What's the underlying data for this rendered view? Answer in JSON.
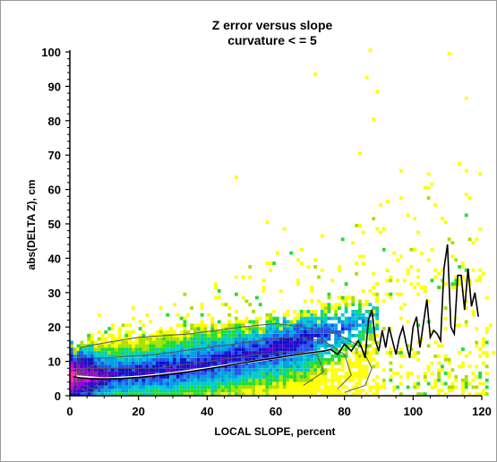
{
  "chart_data": {
    "type": "heatmap",
    "title": "Z error versus slope",
    "subtitle": "curvature < = 5",
    "xlabel": "LOCAL SLOPE, percent",
    "ylabel": "abs(DELTA Z), cm",
    "xlim": [
      0,
      120
    ],
    "ylim": [
      0,
      100
    ],
    "xticks": [
      0,
      20,
      40,
      60,
      80,
      100,
      120
    ],
    "yticks": [
      0,
      10,
      20,
      30,
      40,
      50,
      60,
      70,
      80,
      90,
      100
    ],
    "grid": false,
    "legend": "none",
    "density_colors": [
      "#ffff00",
      "#a8e000",
      "#22dd33",
      "#00cccc",
      "#00a0e0",
      "#2255ee",
      "#1111cc",
      "#5500cc",
      "#9900dd",
      "#dd00cc",
      "#ff22aa"
    ],
    "contour_color": "#555555",
    "median_line": {
      "color": "#000000",
      "x": [
        1,
        3,
        6,
        10,
        15,
        20,
        25,
        30,
        35,
        40,
        45,
        50,
        55,
        60,
        65,
        70,
        74,
        76,
        78,
        80,
        82,
        84,
        85,
        86,
        87,
        88,
        89,
        90,
        91,
        92,
        93,
        94,
        95,
        96,
        97,
        98,
        99,
        100,
        101,
        102,
        103,
        104,
        105,
        106,
        107,
        108,
        109,
        110,
        111,
        112,
        113,
        114,
        115,
        116,
        117,
        118,
        119
      ],
      "y": [
        5.5,
        5.2,
        5.0,
        4.9,
        5.0,
        5.3,
        5.8,
        6.4,
        7.0,
        7.8,
        8.6,
        9.5,
        10.3,
        11.0,
        11.8,
        12.5,
        13.0,
        13.5,
        12.0,
        15.0,
        13.0,
        16.0,
        14.0,
        11.0,
        22.0,
        25.0,
        16.0,
        13.0,
        19.0,
        14.0,
        20.0,
        16.0,
        12.0,
        17.0,
        20.0,
        15.0,
        11.0,
        20.0,
        23.0,
        14.0,
        21.0,
        28.0,
        17.0,
        19.0,
        18.0,
        16.0,
        37.0,
        44.0,
        20.0,
        18.0,
        35.0,
        35.0,
        25.0,
        37.0,
        26.0,
        30.0,
        23.0
      ]
    },
    "smooth_line": {
      "color": "#ffffff",
      "x": [
        2,
        10,
        20,
        30,
        40,
        50,
        60,
        70,
        75
      ],
      "y": [
        5.6,
        5.0,
        5.5,
        6.6,
        8.0,
        9.5,
        11.0,
        12.5,
        13.2
      ]
    },
    "scatter_outliers": [
      {
        "x": 87,
        "y": 100
      },
      {
        "x": 110,
        "y": 99
      },
      {
        "x": 71,
        "y": 93
      },
      {
        "x": 86,
        "y": 92
      },
      {
        "x": 89,
        "y": 88
      },
      {
        "x": 115,
        "y": 86
      },
      {
        "x": 88,
        "y": 80
      },
      {
        "x": 84,
        "y": 70
      },
      {
        "x": 113,
        "y": 67
      },
      {
        "x": 48,
        "y": 63
      },
      {
        "x": 96,
        "y": 65
      },
      {
        "x": 103,
        "y": 60
      },
      {
        "x": 90,
        "y": 55
      },
      {
        "x": 116,
        "y": 57
      },
      {
        "x": 98,
        "y": 52
      },
      {
        "x": 57,
        "y": 50
      },
      {
        "x": 62,
        "y": 48
      },
      {
        "x": 108,
        "y": 51
      },
      {
        "x": 73,
        "y": 46
      },
      {
        "x": 82,
        "y": 44
      },
      {
        "x": 101,
        "y": 47
      },
      {
        "x": 118,
        "y": 45
      },
      {
        "x": 94,
        "y": 41
      },
      {
        "x": 111,
        "y": 40
      },
      {
        "x": 66,
        "y": 39
      },
      {
        "x": 85,
        "y": 38
      },
      {
        "x": 106,
        "y": 36
      },
      {
        "x": 78,
        "y": 37
      },
      {
        "x": 119,
        "y": 34
      },
      {
        "x": 92,
        "y": 33
      },
      {
        "x": 52,
        "y": 34
      },
      {
        "x": 100,
        "y": 31
      },
      {
        "x": 114,
        "y": 30
      },
      {
        "x": 70,
        "y": 31
      },
      {
        "x": 88,
        "y": 29
      },
      {
        "x": 121,
        "y": 28
      },
      {
        "x": 104,
        "y": 27
      },
      {
        "x": 97,
        "y": 26
      },
      {
        "x": 18,
        "y": 25
      },
      {
        "x": 30,
        "y": 26
      },
      {
        "x": 117,
        "y": 24
      },
      {
        "x": 112,
        "y": 22
      },
      {
        "x": 8,
        "y": 23
      },
      {
        "x": 122,
        "y": 20
      },
      {
        "x": 109,
        "y": 19
      },
      {
        "x": 120,
        "y": 16
      },
      {
        "x": 123,
        "y": 12
      },
      {
        "x": 121,
        "y": 6
      },
      {
        "x": 116,
        "y": 3
      },
      {
        "x": 113,
        "y": 8
      }
    ]
  }
}
